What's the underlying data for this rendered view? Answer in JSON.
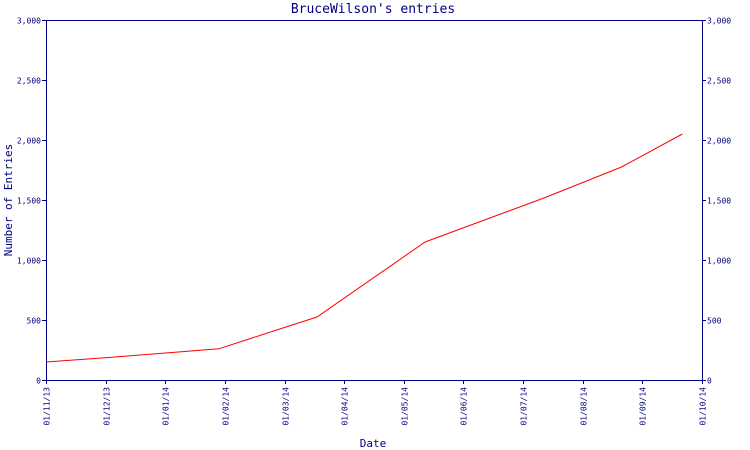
{
  "chart_data": {
    "type": "line",
    "title": "BruceWilson's entries",
    "xlabel": "Date",
    "ylabel": "Number of Entries",
    "x_tick_labels": [
      "01/11/13",
      "01/12/13",
      "01/01/14",
      "01/02/14",
      "01/03/14",
      "01/04/14",
      "01/05/14",
      "01/06/14",
      "01/07/14",
      "01/08/14",
      "01/09/14",
      "01/10/14"
    ],
    "y_tick_labels": [
      "0",
      "500",
      "1,000",
      "1,500",
      "2,000",
      "2,500",
      "3,000"
    ],
    "y_ticks": [
      0,
      500,
      1000,
      1500,
      2000,
      2500,
      3000
    ],
    "ylim": [
      0,
      3000
    ],
    "xlim": [
      "2013-11-01",
      "2014-10-01"
    ],
    "grid": false,
    "series": [
      {
        "color": "#ff0000",
        "points": [
          {
            "x": "2013-11-01",
            "y": 150
          },
          {
            "x": "2013-12-01",
            "y": 185
          },
          {
            "x": "2014-01-01",
            "y": 225
          },
          {
            "x": "2014-01-28",
            "y": 260
          },
          {
            "x": "2014-03-01",
            "y": 430
          },
          {
            "x": "2014-03-19",
            "y": 525
          },
          {
            "x": "2014-05-13",
            "y": 1150
          },
          {
            "x": "2014-06-15",
            "y": 1350
          },
          {
            "x": "2014-07-13",
            "y": 1520
          },
          {
            "x": "2014-08-21",
            "y": 1775
          },
          {
            "x": "2014-09-21",
            "y": 2050
          }
        ]
      }
    ],
    "colors": {
      "axis": "#000080",
      "text": "#000080",
      "line": "#ff0000",
      "background": "#ffffff"
    }
  }
}
